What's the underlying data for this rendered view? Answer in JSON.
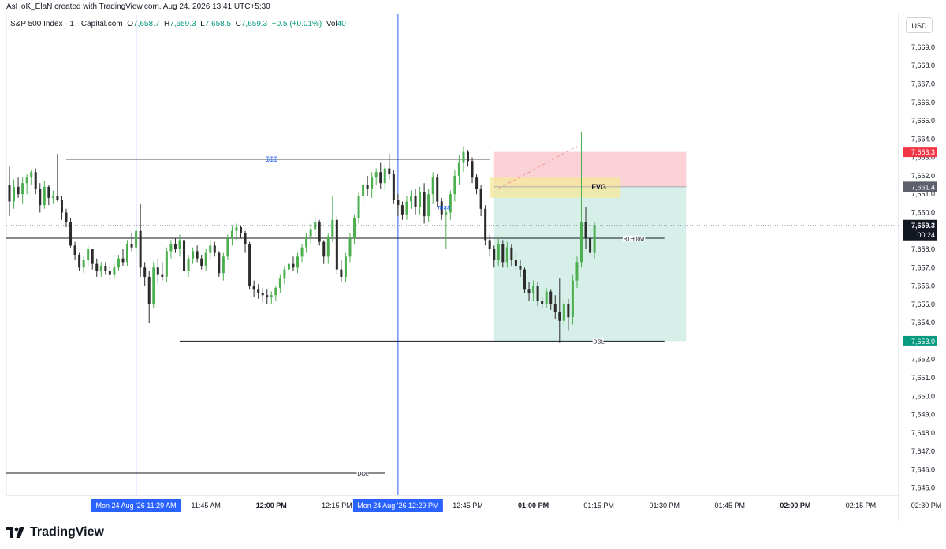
{
  "header": {
    "created_by": "AsHoK_ElaN created with TradingView.com, Aug 24, 2026 13:41 UTC+5:30"
  },
  "legend": {
    "symbol": "S&P 500 Index · 1 · Capital.com",
    "o_label": "O",
    "o_value": "7,658.7",
    "h_label": "H",
    "h_value": "7,659.3",
    "l_label": "L",
    "l_value": "7,658.5",
    "c_label": "C",
    "c_value": "7,659.3",
    "change": "+0.5 (+0.01%)",
    "vol_label": "Vol",
    "vol_value": "40"
  },
  "currency_button": "USD",
  "footer": {
    "brand": "TradingView",
    "logo_icon": "tradingview-logo-icon"
  },
  "colors": {
    "up": "#4caf50",
    "down": "#2b2b2b",
    "accent_blue": "#2962ff",
    "red_zone": "#f7c6cc",
    "green_zone": "#d4eee8",
    "fvg": "#f5e89b",
    "price_label_red": "#f23645",
    "price_label_gray": "#5d606b",
    "price_label_black": "#131722",
    "price_label_green": "#089981"
  },
  "annotations": {
    "sss": "$$$",
    "fvg": "FVG",
    "mss": "mss",
    "rth_low": "RTH low",
    "dol_1": "DOL",
    "dol_2": "DOL"
  },
  "price_labels": {
    "red": "7,663.3",
    "gray": "7,661.4",
    "current": "7,659.3",
    "countdown": "00:24",
    "green": "7,653.0"
  },
  "time_labels": {
    "highlight_1": "Mon 24 Aug '26   11:29 AM",
    "highlight_2": "Mon 24 Aug '26   12:29 PM"
  },
  "chart_data": {
    "type": "candlestick",
    "symbol": "S&P 500 Index · 1 · Capital.com",
    "y_ticks": [
      "7,645.0",
      "7,646.0",
      "7,647.0",
      "7,648.0",
      "7,649.0",
      "7,650.0",
      "7,651.0",
      "7,652.0",
      "7,653.0",
      "7,654.0",
      "7,655.0",
      "7,656.0",
      "7,657.0",
      "7,658.0",
      "7,659.0",
      "7,660.0",
      "7,661.0",
      "7,662.0",
      "7,663.0",
      "7,664.0",
      "7,665.0",
      "7,666.0",
      "7,667.0",
      "7,668.0",
      "7,669.0"
    ],
    "y_tick_values": [
      7645,
      7646,
      7647,
      7648,
      7649,
      7650,
      7651,
      7652,
      7653,
      7654,
      7655,
      7656,
      7657,
      7658,
      7659,
      7660,
      7661,
      7662,
      7663,
      7664,
      7665,
      7666,
      7667,
      7668,
      7669
    ],
    "ylim": [
      7644.6,
      7670.8
    ],
    "x_range_minutes": [
      0,
      197
    ],
    "x_ticks": [
      {
        "label": "11:45 AM",
        "minute": 45,
        "bold": false
      },
      {
        "label": "12:00 PM",
        "minute": 60,
        "bold": true
      },
      {
        "label": "12:15 PM",
        "minute": 75,
        "bold": false
      },
      {
        "label": "12:45 PM",
        "minute": 105,
        "bold": false
      },
      {
        "label": "01:00 PM",
        "minute": 120,
        "bold": true
      },
      {
        "label": "01:15 PM",
        "minute": 135,
        "bold": false
      },
      {
        "label": "01:30 PM",
        "minute": 150,
        "bold": false
      },
      {
        "label": "01:45 PM",
        "minute": 165,
        "bold": false
      },
      {
        "label": "02:00 PM",
        "minute": 180,
        "bold": true
      },
      {
        "label": "02:15 PM",
        "minute": 195,
        "bold": false
      },
      {
        "label": "02:30 PM",
        "minute": 210,
        "bold": false
      }
    ],
    "candles": [
      [
        7661.5,
        7662.5,
        7659.8,
        7660.6
      ],
      [
        7660.6,
        7661.8,
        7660.2,
        7661.4
      ],
      [
        7661.4,
        7661.9,
        7660.8,
        7661.0
      ],
      [
        7661.0,
        7661.9,
        7660.5,
        7661.6
      ],
      [
        7661.6,
        7662.1,
        7661.0,
        7661.9
      ],
      [
        7661.9,
        7662.3,
        7661.5,
        7662.2
      ],
      [
        7662.2,
        7662.4,
        7661.0,
        7661.3
      ],
      [
        7661.3,
        7661.6,
        7660.0,
        7660.4
      ],
      [
        7660.4,
        7661.7,
        7660.2,
        7661.4
      ],
      [
        7661.4,
        7661.5,
        7660.4,
        7660.8
      ],
      [
        7660.8,
        7661.2,
        7660.5,
        7660.9
      ],
      [
        7660.9,
        7663.2,
        7660.6,
        7660.7
      ],
      [
        7660.7,
        7660.9,
        7659.6,
        7660.0
      ],
      [
        7660.0,
        7660.2,
        7659.2,
        7659.5
      ],
      [
        7659.5,
        7659.7,
        7658.1,
        7658.2
      ],
      [
        7658.2,
        7658.4,
        7657.4,
        7657.7
      ],
      [
        7657.7,
        7657.8,
        7656.8,
        7657.0
      ],
      [
        7657.0,
        7657.6,
        7656.7,
        7657.4
      ],
      [
        7657.4,
        7658.2,
        7657.0,
        7658.0
      ],
      [
        7658.0,
        7658.0,
        7656.9,
        7657.2
      ],
      [
        7657.2,
        7657.5,
        7656.5,
        7656.8
      ],
      [
        7656.8,
        7657.3,
        7656.5,
        7657.1
      ],
      [
        7657.1,
        7657.3,
        7656.6,
        7656.8
      ],
      [
        7656.8,
        7657.1,
        7656.3,
        7656.6
      ],
      [
        7656.6,
        7657.2,
        7656.4,
        7657.0
      ],
      [
        7657.0,
        7657.7,
        7656.8,
        7657.5
      ],
      [
        7657.5,
        7658.0,
        7657.1,
        7657.3
      ],
      [
        7657.3,
        7658.5,
        7657.1,
        7658.3
      ],
      [
        7658.3,
        7658.9,
        7657.9,
        7658.1
      ],
      [
        7658.1,
        7659.3,
        7657.6,
        7659.0
      ],
      [
        7659.0,
        7660.5,
        7656.5,
        7657.0
      ],
      [
        7657.0,
        7657.3,
        7656.0,
        7656.5
      ],
      [
        7656.5,
        7656.8,
        7654.0,
        7655.0
      ],
      [
        7655.0,
        7657.3,
        7654.8,
        7657.0
      ],
      [
        7657.0,
        7657.5,
        7656.1,
        7656.6
      ],
      [
        7656.6,
        7657.3,
        7656.3,
        7656.5
      ],
      [
        7656.5,
        7658.1,
        7656.2,
        7657.9
      ],
      [
        7657.9,
        7658.5,
        7657.5,
        7658.3
      ],
      [
        7658.3,
        7658.6,
        7657.8,
        7658.0
      ],
      [
        7658.0,
        7658.8,
        7657.6,
        7658.5
      ],
      [
        7658.5,
        7658.6,
        7656.5,
        7656.8
      ],
      [
        7656.8,
        7657.7,
        7656.5,
        7657.5
      ],
      [
        7657.5,
        7658.1,
        7657.2,
        7657.9
      ],
      [
        7657.9,
        7658.2,
        7657.3,
        7657.5
      ],
      [
        7657.5,
        7657.7,
        7656.9,
        7657.1
      ],
      [
        7657.1,
        7658.0,
        7656.8,
        7657.8
      ],
      [
        7657.8,
        7658.5,
        7657.4,
        7658.2
      ],
      [
        7658.2,
        7658.4,
        7657.6,
        7657.8
      ],
      [
        7657.8,
        7657.9,
        7656.5,
        7656.7
      ],
      [
        7656.7,
        7657.8,
        7656.3,
        7657.6
      ],
      [
        7657.6,
        7658.8,
        7657.4,
        7658.6
      ],
      [
        7658.6,
        7659.3,
        7658.2,
        7659.0
      ],
      [
        7659.0,
        7659.4,
        7658.5,
        7659.2
      ],
      [
        7659.2,
        7659.3,
        7658.6,
        7658.9
      ],
      [
        7658.9,
        7659.0,
        7657.8,
        7658.3
      ],
      [
        7658.3,
        7658.4,
        7655.8,
        7656.0
      ],
      [
        7656.0,
        7656.3,
        7655.4,
        7655.8
      ],
      [
        7655.8,
        7656.1,
        7655.3,
        7655.6
      ],
      [
        7655.6,
        7655.9,
        7655.1,
        7655.5
      ],
      [
        7655.5,
        7655.8,
        7655.0,
        7655.4
      ],
      [
        7655.4,
        7655.7,
        7655.0,
        7655.5
      ],
      [
        7655.5,
        7656.0,
        7655.2,
        7655.9
      ],
      [
        7655.9,
        7656.6,
        7655.6,
        7656.4
      ],
      [
        7656.4,
        7657.1,
        7656.1,
        7656.9
      ],
      [
        7656.9,
        7657.5,
        7656.5,
        7657.2
      ],
      [
        7657.2,
        7657.6,
        7656.8,
        7657.0
      ],
      [
        7657.0,
        7657.8,
        7656.7,
        7657.6
      ],
      [
        7657.6,
        7658.3,
        7657.3,
        7658.1
      ],
      [
        7658.1,
        7658.9,
        7657.8,
        7658.7
      ],
      [
        7658.7,
        7659.4,
        7658.3,
        7659.1
      ],
      [
        7659.1,
        7659.9,
        7658.6,
        7659.5
      ],
      [
        7659.5,
        7659.6,
        7658.2,
        7658.4
      ],
      [
        7658.4,
        7658.5,
        7657.2,
        7657.6
      ],
      [
        7657.6,
        7658.9,
        7657.2,
        7658.7
      ],
      [
        7658.7,
        7660.9,
        7658.4,
        7659.6
      ],
      [
        7659.6,
        7659.8,
        7656.6,
        7656.9
      ],
      [
        7656.9,
        7657.4,
        7656.2,
        7656.5
      ],
      [
        7656.5,
        7657.8,
        7656.2,
        7657.6
      ],
      [
        7657.6,
        7658.9,
        7657.3,
        7658.6
      ],
      [
        7658.6,
        7659.9,
        7658.3,
        7659.7
      ],
      [
        7659.7,
        7661.1,
        7659.4,
        7660.9
      ],
      [
        7660.9,
        7661.8,
        7660.4,
        7661.5
      ],
      [
        7661.5,
        7662.0,
        7660.9,
        7661.3
      ],
      [
        7661.3,
        7662.2,
        7660.8,
        7661.9
      ],
      [
        7661.9,
        7662.4,
        7661.5,
        7662.2
      ],
      [
        7662.2,
        7662.7,
        7661.3,
        7661.6
      ],
      [
        7661.6,
        7662.6,
        7661.2,
        7662.4
      ],
      [
        7662.4,
        7663.2,
        7661.8,
        7662.1
      ],
      [
        7662.1,
        7662.3,
        7660.5,
        7660.7
      ],
      [
        7660.7,
        7661.0,
        7659.8,
        7660.4
      ],
      [
        7660.4,
        7660.6,
        7659.6,
        7659.9
      ],
      [
        7659.9,
        7660.9,
        7659.6,
        7660.6
      ],
      [
        7660.6,
        7661.2,
        7660.2,
        7660.9
      ],
      [
        7660.9,
        7661.3,
        7659.9,
        7660.3
      ],
      [
        7660.3,
        7661.4,
        7659.9,
        7661.1
      ],
      [
        7661.1,
        7661.6,
        7659.4,
        7659.8
      ],
      [
        7659.8,
        7661.3,
        7659.5,
        7661.0
      ],
      [
        7661.0,
        7662.2,
        7660.5,
        7661.9
      ],
      [
        7661.9,
        7662.1,
        7660.3,
        7660.6
      ],
      [
        7660.6,
        7660.8,
        7659.6,
        7659.9
      ],
      [
        7659.9,
        7660.2,
        7658.0,
        7660.0
      ],
      [
        7660.0,
        7661.2,
        7659.6,
        7661.0
      ],
      [
        7661.0,
        7662.3,
        7660.6,
        7662.0
      ],
      [
        7662.0,
        7663.1,
        7661.5,
        7662.7
      ],
      [
        7662.7,
        7663.6,
        7662.2,
        7663.3
      ],
      [
        7663.3,
        7663.4,
        7662.5,
        7662.8
      ],
      [
        7662.8,
        7663.0,
        7661.6,
        7661.9
      ],
      [
        7661.9,
        7662.1,
        7661.0,
        7661.3
      ],
      [
        7661.3,
        7661.5,
        7659.8,
        7660.2
      ],
      [
        7660.2,
        7660.4,
        7658.2,
        7658.5
      ],
      [
        7658.5,
        7658.8,
        7657.6,
        7658.0
      ],
      [
        7658.0,
        7658.2,
        7657.0,
        7657.4
      ],
      [
        7657.4,
        7658.6,
        7657.1,
        7658.3
      ],
      [
        7658.3,
        7658.5,
        7657.0,
        7657.3
      ],
      [
        7657.3,
        7658.4,
        7657.0,
        7658.1
      ],
      [
        7658.1,
        7658.3,
        7657.1,
        7657.4
      ],
      [
        7657.4,
        7657.8,
        7656.8,
        7657.1
      ],
      [
        7657.1,
        7657.4,
        7656.5,
        7656.9
      ],
      [
        7656.9,
        7657.0,
        7655.6,
        7655.8
      ],
      [
        7655.8,
        7656.2,
        7655.2,
        7655.6
      ],
      [
        7655.6,
        7656.3,
        7655.2,
        7656.0
      ],
      [
        7656.0,
        7656.2,
        7654.9,
        7655.2
      ],
      [
        7655.2,
        7655.4,
        7654.8,
        7655.0
      ],
      [
        7655.0,
        7655.9,
        7654.8,
        7655.7
      ],
      [
        7655.7,
        7655.8,
        7654.7,
        7655.0
      ],
      [
        7655.0,
        7655.5,
        7654.2,
        7654.6
      ],
      [
        7654.6,
        7656.4,
        7652.9,
        7654.1
      ],
      [
        7654.1,
        7655.3,
        7653.8,
        7655.0
      ],
      [
        7655.0,
        7655.3,
        7653.6,
        7654.3
      ],
      [
        7654.3,
        7656.6,
        7653.9,
        7656.3
      ],
      [
        7656.3,
        7657.6,
        7655.9,
        7657.3
      ],
      [
        7657.3,
        7664.4,
        7657.0,
        7659.5
      ],
      [
        7659.5,
        7660.3,
        7658.0,
        7658.6
      ],
      [
        7658.6,
        7659.1,
        7657.6,
        7657.8
      ],
      [
        7657.8,
        7659.5,
        7657.5,
        7659.3
      ]
    ],
    "levels": {
      "sss_level": 7662.9,
      "rth_low": 7658.6,
      "dol_upper": 7653.0,
      "dol_lower": 7645.8,
      "red_zone": [
        7661.4,
        7663.3
      ],
      "green_zone": [
        7653.0,
        7661.4
      ],
      "fvg": [
        7660.8,
        7661.9
      ]
    },
    "vertical_lines_minutes": [
      29,
      89
    ],
    "last_price": 7659.3
  }
}
